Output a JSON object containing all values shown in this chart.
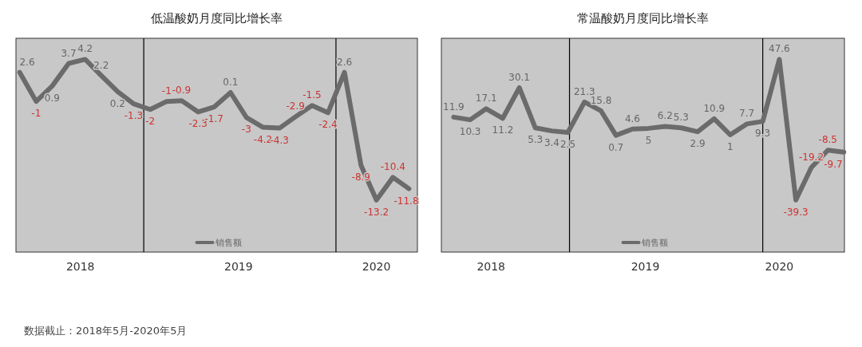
{
  "chart_data": [
    {
      "type": "line",
      "title": "低温酸奶月度同比增长率",
      "x": [
        "2018-05",
        "2018-06",
        "2018-07",
        "2018-08",
        "2018-09",
        "2018-10",
        "2018-11",
        "2018-12",
        "2019-01",
        "2019-02",
        "2019-03",
        "2019-04",
        "2019-05",
        "2019-06",
        "2019-07",
        "2019-08",
        "2019-09",
        "2019-10",
        "2019-11",
        "2019-12",
        "2020-01",
        "2020-02",
        "2020-03",
        "2020-04",
        "2020-05"
      ],
      "xlim": [
        "2018-04-24",
        "2020-05-17"
      ],
      "xticks": [
        {
          "value": "2018-08-23",
          "label": "2018"
        },
        {
          "value": "2019-06-16",
          "label": "2019"
        },
        {
          "value": "2020-03-01",
          "label": "2020"
        }
      ],
      "ref_lines": [
        {
          "axis": "x",
          "value": "2018-12-20",
          "color": "#000000"
        },
        {
          "axis": "x",
          "value": "2019-12-16",
          "color": "#000000"
        }
      ],
      "series": [
        {
          "name": "销售额",
          "color": "#6b6b6b",
          "values": [
            2.6,
            -1,
            0.9,
            3.7,
            4.2,
            2.2,
            0.2,
            -1.3,
            -2,
            -1,
            -0.9,
            -2.3,
            -1.7,
            0.1,
            -3,
            -4.2,
            -4.3,
            -2.9,
            -1.5,
            -2.4,
            2.6,
            -8.9,
            -13.2,
            -10.4,
            -11.8
          ]
        }
      ],
      "data_labels": true,
      "legend": "bottom",
      "annotations": [
        "数据截止：2018年5月-2020年5月"
      ]
    },
    {
      "type": "line",
      "title": "常温酸奶月度同比增长率",
      "x": [
        "2018-05",
        "2018-06",
        "2018-07",
        "2018-08",
        "2018-09",
        "2018-10",
        "2018-11",
        "2018-12",
        "2019-01",
        "2019-02",
        "2019-03",
        "2019-04",
        "2019-05",
        "2019-06",
        "2019-07",
        "2019-08",
        "2019-09",
        "2019-10",
        "2019-11",
        "2019-12",
        "2020-01",
        "2020-02",
        "2020-03",
        "2020-04",
        "2020-05"
      ],
      "xlim": [
        "2018-04-08",
        "2020-05-02"
      ],
      "xticks": [
        {
          "value": "2018-07-10",
          "label": "2018"
        },
        {
          "value": "2019-04-25",
          "label": "2019"
        },
        {
          "value": "2020-01-01",
          "label": "2020"
        }
      ],
      "ref_lines": [
        {
          "axis": "x",
          "value": "2018-12-04",
          "color": "#000000"
        },
        {
          "axis": "x",
          "value": "2019-12-01",
          "color": "#000000"
        }
      ],
      "series": [
        {
          "name": "销售额",
          "color": "#6b6b6b",
          "values": [
            11.9,
            10.3,
            17.1,
            11.2,
            30.1,
            5.3,
            3.4,
            2.5,
            21.3,
            15.8,
            0.7,
            4.6,
            5,
            6.2,
            5.3,
            2.9,
            10.9,
            1,
            7.7,
            9.3,
            47.6,
            -39.3,
            -19.2,
            -8.5,
            -9.7
          ]
        }
      ],
      "data_labels": true,
      "legend": "bottom"
    }
  ]
}
